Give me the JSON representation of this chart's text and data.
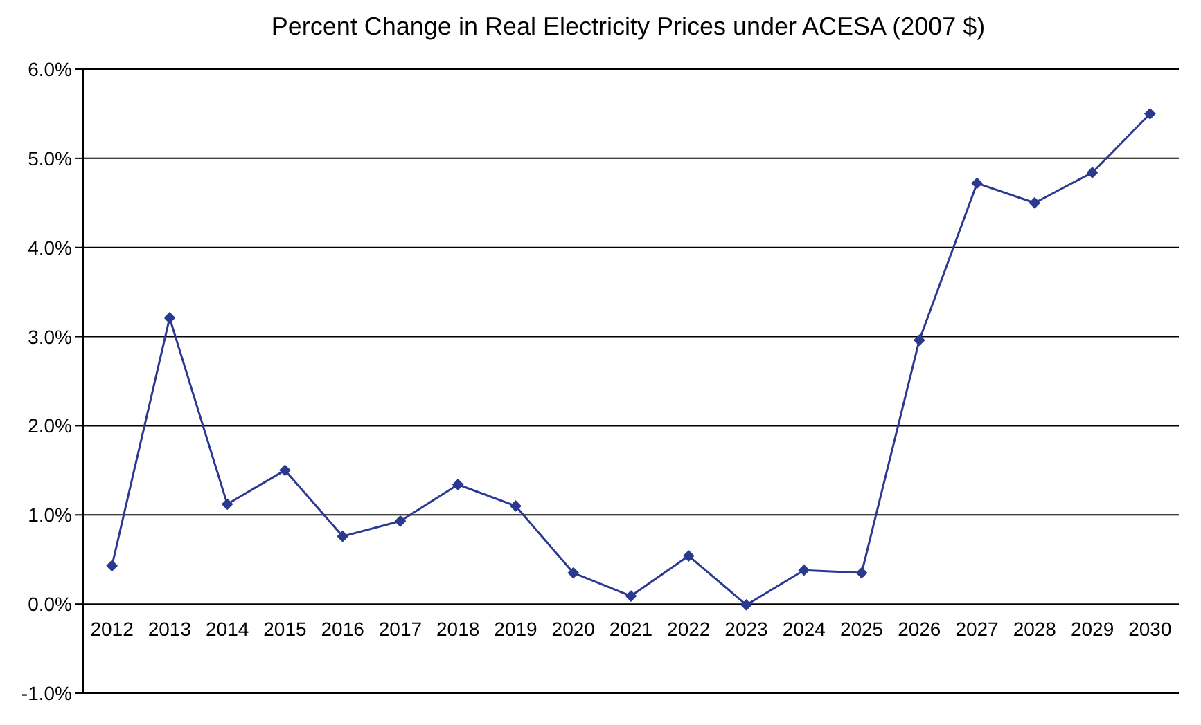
{
  "chart_data": {
    "type": "line",
    "title": "Percent Change in Real Electricity Prices under ACESA (2007 $)",
    "categories": [
      "2012",
      "2013",
      "2014",
      "2015",
      "2016",
      "2017",
      "2018",
      "2019",
      "2020",
      "2021",
      "2022",
      "2023",
      "2024",
      "2025",
      "2026",
      "2027",
      "2028",
      "2029",
      "2030"
    ],
    "series": [
      {
        "color": "#2b3990",
        "values": [
          0.43,
          3.21,
          1.12,
          1.5,
          0.76,
          0.93,
          1.34,
          1.1,
          0.35,
          0.09,
          0.54,
          -0.01,
          0.38,
          0.35,
          2.96,
          4.72,
          4.5,
          4.84,
          5.5
        ]
      }
    ],
    "ylim": [
      -1,
      6
    ],
    "yticks": [
      {
        "value": -1,
        "label": "-1.0%"
      },
      {
        "value": 0,
        "label": "0.0%"
      },
      {
        "value": 1,
        "label": "1.0%"
      },
      {
        "value": 2,
        "label": "2.0%"
      },
      {
        "value": 3,
        "label": "3.0%"
      },
      {
        "value": 4,
        "label": "4.0%"
      },
      {
        "value": 5,
        "label": "5.0%"
      },
      {
        "value": 6,
        "label": "6.0%"
      }
    ],
    "grid": "y",
    "legend": false,
    "marker": "diamond",
    "line_style": "solid"
  }
}
